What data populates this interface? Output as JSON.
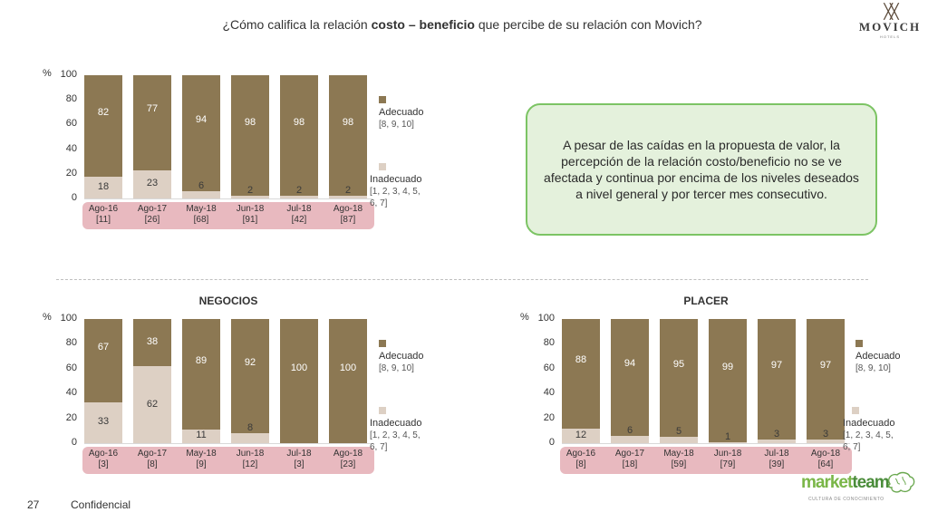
{
  "header": {
    "title_pre": "¿Cómo califica la relación ",
    "title_bold": "costo – beneficio",
    "title_post": " que percibe de su relación con Movich?",
    "logo_text": "MOVICH",
    "logo_sub": "HOTELS"
  },
  "callout": {
    "text": "A pesar de las caídas en la propuesta de valor, la percepción de la relación costo/beneficio no se ve afectada y continua por encima de los niveles deseados a nivel general y por tercer mes consecutivo."
  },
  "legend": {
    "adecuado": "Adecuado",
    "adecuado_range": "[8, 9, 10]",
    "inadecuado": "Inadecuado",
    "inadecuado_range": "[1, 2, 3, 4, 5, 6, 7]"
  },
  "colors": {
    "adecuado": "#8c7853",
    "inadecuado": "#ddd0c4",
    "xaxis_box": "#e8b9bf",
    "callout_border": "#7cc464"
  },
  "footer": {
    "page": "27",
    "label": "Confidencial",
    "brand_1": "market",
    "brand_2": "team",
    "brand_tag": "CULTURA DE CONOCIMIENTO"
  },
  "chart_data": [
    {
      "type": "bar",
      "stacked": true,
      "title": "",
      "ylabel": "%",
      "ylim": [
        0,
        100
      ],
      "yticks": [
        0,
        20,
        40,
        60,
        80,
        100
      ],
      "categories": [
        "Ago-16",
        "Ago-17",
        "May-18",
        "Jun-18",
        "Jul-18",
        "Ago-18"
      ],
      "bases": [
        "[11]",
        "[26]",
        "[68]",
        "[91]",
        "[42]",
        "[87]"
      ],
      "series": [
        {
          "name": "Adecuado",
          "values": [
            82,
            77,
            94,
            98,
            98,
            98
          ]
        },
        {
          "name": "Inadecuado",
          "values": [
            18,
            23,
            6,
            2,
            2,
            2
          ]
        }
      ]
    },
    {
      "type": "bar",
      "stacked": true,
      "title": "NEGOCIOS",
      "ylabel": "%",
      "ylim": [
        0,
        100
      ],
      "yticks": [
        0,
        20,
        40,
        60,
        80,
        100
      ],
      "categories": [
        "Ago-16",
        "Ago-17",
        "May-18",
        "Jun-18",
        "Jul-18",
        "Ago-18"
      ],
      "bases": [
        "[3]",
        "[8]",
        "[9]",
        "[12]",
        "[3]",
        "[23]"
      ],
      "series": [
        {
          "name": "Adecuado",
          "values": [
            67,
            38,
            89,
            92,
            100,
            100
          ]
        },
        {
          "name": "Inadecuado",
          "values": [
            33,
            62,
            11,
            8,
            null,
            null
          ]
        }
      ]
    },
    {
      "type": "bar",
      "stacked": true,
      "title": "PLACER",
      "ylabel": "%",
      "ylim": [
        0,
        100
      ],
      "yticks": [
        0,
        20,
        40,
        60,
        80,
        100
      ],
      "categories": [
        "Ago-16",
        "Ago-17",
        "May-18",
        "Jun-18",
        "Jul-18",
        "Ago-18"
      ],
      "bases": [
        "[8]",
        "[18]",
        "[59]",
        "[79]",
        "[39]",
        "[64]"
      ],
      "series": [
        {
          "name": "Adecuado",
          "values": [
            88,
            94,
            95,
            99,
            97,
            97
          ]
        },
        {
          "name": "Inadecuado",
          "values": [
            12,
            6,
            5,
            1,
            3,
            3
          ]
        }
      ]
    }
  ]
}
